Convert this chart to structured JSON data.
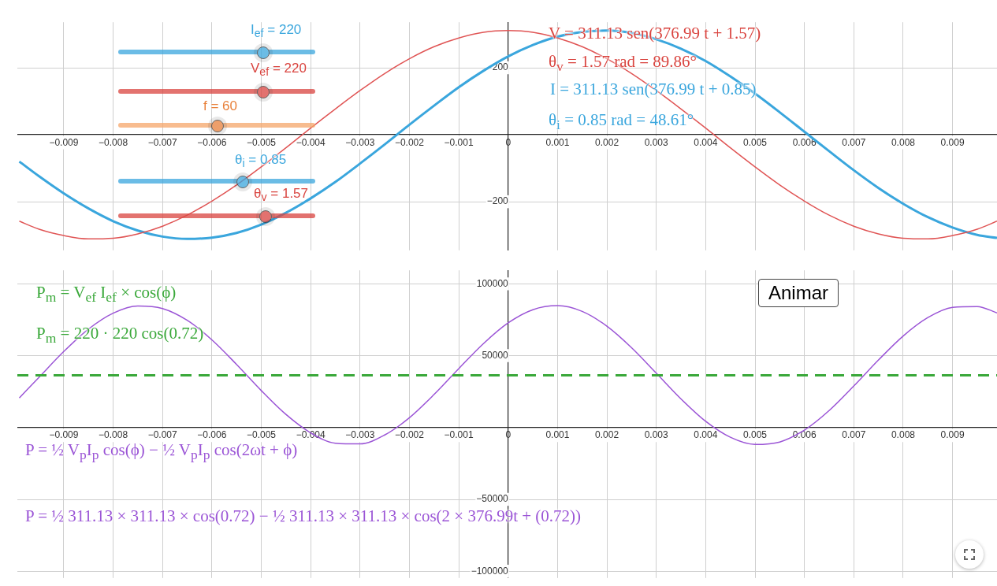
{
  "chart_data": [
    {
      "type": "line",
      "x": [
        -0.0099,
        -0.0095,
        -0.009,
        -0.0085,
        -0.008,
        -0.0075,
        -0.007,
        -0.0065,
        -0.006,
        -0.0055,
        -0.005,
        -0.0045,
        -0.004,
        -0.0035,
        -0.003,
        -0.0025,
        -0.002,
        -0.0015,
        -0.001,
        -0.0005,
        0,
        0.0005,
        0.001,
        0.0015,
        0.002,
        0.0025,
        0.003,
        0.0035,
        0.004,
        0.0045,
        0.005,
        0.0055,
        0.006,
        0.0065,
        0.007,
        0.0075,
        0.008,
        0.0085,
        0.009,
        0.0095,
        0.0099
      ],
      "series": [
        {
          "color": "#e05555",
          "values": [
            -258,
            -282,
            -301,
            -311,
            -309,
            -296,
            -273,
            -240,
            -198,
            -150,
            -96,
            -39,
            20,
            77,
            132,
            183,
            227,
            263,
            289,
            306,
            311,
            306,
            289,
            263,
            227,
            183,
            132,
            77,
            20,
            -39,
            -96,
            -150,
            -198,
            -240,
            -273,
            -296,
            -309,
            -311,
            -301,
            -282,
            -258
          ]
        },
        {
          "color": "#3aa6dd",
          "values": [
            -80,
            -124,
            -175,
            -220,
            -258,
            -286,
            -304,
            -311,
            -307,
            -293,
            -268,
            -233,
            -190,
            -141,
            -86,
            -29,
            30,
            87,
            142,
            191,
            234,
            268,
            293,
            307,
            311,
            304,
            285,
            257,
            220,
            174,
            123,
            67,
            9,
            -49,
            -106,
            -159,
            -206,
            -246,
            -277,
            -299,
            -308
          ]
        }
      ],
      "xlim": [
        -0.00994,
        0.0099
      ],
      "ylim": [
        -345,
        336
      ],
      "xticks": [
        {
          "value": -0.009,
          "label": "−0.009"
        },
        {
          "value": -0.008,
          "label": "−0.008"
        },
        {
          "value": -0.007,
          "label": "−0.007"
        },
        {
          "value": -0.006,
          "label": "−0.006"
        },
        {
          "value": -0.005,
          "label": "−0.005"
        },
        {
          "value": -0.004,
          "label": "−0.004"
        },
        {
          "value": -0.003,
          "label": "−0.003"
        },
        {
          "value": -0.002,
          "label": "−0.002"
        },
        {
          "value": -0.001,
          "label": "−0.001"
        },
        0,
        0.001,
        0.002,
        0.003,
        0.004,
        0.005,
        0.006,
        0.007,
        0.008,
        0.009
      ],
      "yticks": [
        {
          "value": -200,
          "label": "−200"
        },
        200
      ],
      "grid": true,
      "annotations": [
        "I$_{ef}$ = 220",
        "V$_{ef}$ = 220",
        "f = 60",
        "θ$_{i}$ = 0.85",
        "θ$_{v}$ = 1.57",
        "V =  311.13 sen(376.99 t + 1.57)",
        "θ$_{v}$ =  1.57 rad =  89.86°",
        "I =  311.13 sen(376.99 t + 0.85)",
        "θ$_{i}$ =  0.85 rad =  48.61°"
      ]
    },
    {
      "type": "line",
      "x": [
        -0.0099,
        -0.0095,
        -0.009,
        -0.0085,
        -0.008,
        -0.0075,
        -0.007,
        -0.0065,
        -0.006,
        -0.0055,
        -0.005,
        -0.0045,
        -0.004,
        -0.0035,
        -0.003,
        -0.0025,
        -0.002,
        -0.0015,
        -0.001,
        -0.0005,
        0,
        0.0005,
        0.001,
        0.0015,
        0.002,
        0.0025,
        0.003,
        0.0035,
        0.004,
        0.0045,
        0.005,
        0.0055,
        0.006,
        0.0065,
        0.007,
        0.0075,
        0.008,
        0.0085,
        0.009,
        0.0095,
        0.0099
      ],
      "series": [
        {
          "color": "#9b55d6",
          "values": [
            20600,
            35000,
            52900,
            68500,
            79600,
            84600,
            82800,
            74600,
            61000,
            43900,
            25700,
            9100,
            -3700,
            -10900,
            -11400,
            -5200,
            6800,
            23000,
            41000,
            58400,
            72800,
            82000,
            84800,
            80800,
            70500,
            55500,
            37800,
            19900,
            4300,
            -6800,
            -11800,
            -10100,
            -1800,
            11800,
            28900,
            47000,
            63700,
            76500,
            83600,
            84200,
            79800
          ]
        }
      ],
      "xlim": [
        -0.00994,
        0.0099
      ],
      "ylim": [
        -104700,
        109400
      ],
      "xticks": [
        {
          "value": -0.009,
          "label": "−0.009"
        },
        {
          "value": -0.008,
          "label": "−0.008"
        },
        {
          "value": -0.007,
          "label": "−0.007"
        },
        {
          "value": -0.006,
          "label": "−0.006"
        },
        {
          "value": -0.005,
          "label": "−0.005"
        },
        {
          "value": -0.004,
          "label": "−0.004"
        },
        {
          "value": -0.003,
          "label": "−0.003"
        },
        {
          "value": -0.002,
          "label": "−0.002"
        },
        {
          "value": -0.001,
          "label": "−0.001"
        },
        0,
        0.001,
        0.002,
        0.003,
        0.004,
        0.005,
        0.006,
        0.007,
        0.008,
        0.009
      ],
      "yticks": [
        {
          "value": -100000,
          "label": "−100000"
        },
        {
          "value": -50000,
          "label": "−50000"
        },
        50000,
        100000
      ],
      "grid": true,
      "ref_lines": [
        {
          "axis": "y",
          "value": 36400,
          "color": "#3aa83a",
          "line_style": "dashed"
        }
      ],
      "annotations": [
        "P$_{m}$ = V$_{ef}$ I$_{ef}$ × cos(ϕ)",
        "P$_{m}$ =  220 · 220  cos(0.72)",
        "P = ½ V$_{p}$I$_{p}$ cos(ϕ) − ½ V$_{p}$I$_{p}$ cos(2ωt + ϕ)",
        "P = ½ 311.13 × 311.13 × cos(0.72) − ½ 311.13 × 311.13 × cos(2 × 376.99t + (0.72))",
        "Animar"
      ]
    }
  ]
}
